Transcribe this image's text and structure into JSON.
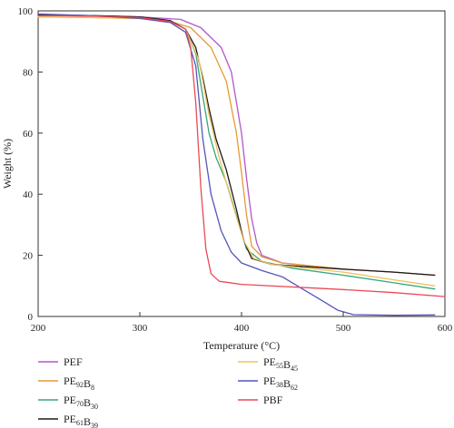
{
  "chart_data": {
    "type": "line",
    "xlabel": "Temperature (°C)",
    "ylabel": "Weight (%)",
    "xlim": [
      200,
      600
    ],
    "ylim": [
      0,
      100
    ],
    "x_ticks": [
      200,
      300,
      400,
      500,
      600
    ],
    "y_ticks": [
      0,
      20,
      40,
      60,
      80,
      100
    ],
    "grid": false,
    "legend_position": "below",
    "series": [
      {
        "name": "PEF",
        "parts": [
          [
            "PEF",
            ""
          ]
        ],
        "color": "#b455cc",
        "points": [
          [
            200,
            98.5
          ],
          [
            250,
            98.3
          ],
          [
            300,
            98.0
          ],
          [
            340,
            97.2
          ],
          [
            360,
            94.5
          ],
          [
            380,
            88
          ],
          [
            390,
            80
          ],
          [
            400,
            60
          ],
          [
            405,
            45
          ],
          [
            410,
            32
          ],
          [
            415,
            24
          ],
          [
            420,
            20
          ],
          [
            440,
            17.5
          ],
          [
            500,
            15.5
          ],
          [
            550,
            14.5
          ],
          [
            590,
            13.5
          ]
        ]
      },
      {
        "name": "PE92B8",
        "parts": [
          [
            "PE",
            "92"
          ],
          [
            "B",
            "8"
          ]
        ],
        "color": "#e69a33",
        "points": [
          [
            200,
            98.0
          ],
          [
            250,
            97.8
          ],
          [
            300,
            97.5
          ],
          [
            330,
            96.5
          ],
          [
            350,
            94.5
          ],
          [
            370,
            88
          ],
          [
            385,
            77
          ],
          [
            395,
            60
          ],
          [
            400,
            47
          ],
          [
            405,
            33
          ],
          [
            410,
            23
          ],
          [
            420,
            19.5
          ],
          [
            440,
            17.5
          ],
          [
            500,
            15.5
          ],
          [
            550,
            14.5
          ],
          [
            590,
            13.5
          ]
        ]
      },
      {
        "name": "PE70B30",
        "parts": [
          [
            "PE",
            "70"
          ],
          [
            "B",
            "30"
          ]
        ],
        "color": "#33a877",
        "points": [
          [
            200,
            98.5
          ],
          [
            250,
            98.5
          ],
          [
            300,
            98.0
          ],
          [
            330,
            96.8
          ],
          [
            345,
            94
          ],
          [
            355,
            86
          ],
          [
            362,
            72
          ],
          [
            368,
            60
          ],
          [
            375,
            52
          ],
          [
            385,
            44
          ],
          [
            395,
            33
          ],
          [
            405,
            22
          ],
          [
            420,
            18
          ],
          [
            450,
            15.8
          ],
          [
            500,
            13.5
          ],
          [
            550,
            11
          ],
          [
            590,
            9
          ]
        ]
      },
      {
        "name": "PE61B39",
        "parts": [
          [
            "PE",
            "61"
          ],
          [
            "B",
            "39"
          ]
        ],
        "color": "#1a1a1a",
        "points": [
          [
            200,
            98.8
          ],
          [
            250,
            98.5
          ],
          [
            300,
            98.0
          ],
          [
            330,
            96.8
          ],
          [
            345,
            94
          ],
          [
            355,
            88
          ],
          [
            362,
            78
          ],
          [
            368,
            68
          ],
          [
            375,
            58
          ],
          [
            385,
            48
          ],
          [
            395,
            35
          ],
          [
            402,
            25
          ],
          [
            410,
            19
          ],
          [
            430,
            17
          ],
          [
            500,
            15.5
          ],
          [
            550,
            14.5
          ],
          [
            590,
            13.5
          ]
        ]
      },
      {
        "name": "PE55B45",
        "parts": [
          [
            "PE",
            "55"
          ],
          [
            "B",
            "45"
          ]
        ],
        "color": "#f0c060",
        "points": [
          [
            200,
            98.0
          ],
          [
            250,
            97.8
          ],
          [
            300,
            97.5
          ],
          [
            330,
            96.5
          ],
          [
            345,
            94
          ],
          [
            358,
            84
          ],
          [
            368,
            66
          ],
          [
            378,
            52
          ],
          [
            390,
            38
          ],
          [
            402,
            25
          ],
          [
            412,
            19
          ],
          [
            430,
            17
          ],
          [
            500,
            14.5
          ],
          [
            550,
            12
          ],
          [
            590,
            10
          ]
        ]
      },
      {
        "name": "PE38B62",
        "parts": [
          [
            "PE",
            "38"
          ],
          [
            "B",
            "62"
          ]
        ],
        "color": "#5555b8",
        "points": [
          [
            200,
            99.0
          ],
          [
            250,
            98.5
          ],
          [
            300,
            97.5
          ],
          [
            330,
            96.2
          ],
          [
            345,
            93
          ],
          [
            355,
            82
          ],
          [
            362,
            58
          ],
          [
            370,
            40
          ],
          [
            380,
            28
          ],
          [
            390,
            21
          ],
          [
            400,
            17.5
          ],
          [
            420,
            15
          ],
          [
            440,
            13
          ],
          [
            460,
            9
          ],
          [
            480,
            5
          ],
          [
            495,
            2
          ],
          [
            510,
            0.6
          ],
          [
            550,
            0.4
          ],
          [
            590,
            0.5
          ]
        ]
      },
      {
        "name": "PBF",
        "parts": [
          [
            "PBF",
            ""
          ]
        ],
        "color": "#e84a55",
        "points": [
          [
            200,
            98.5
          ],
          [
            250,
            98.3
          ],
          [
            300,
            97.8
          ],
          [
            330,
            96.5
          ],
          [
            345,
            94
          ],
          [
            350,
            88
          ],
          [
            355,
            70
          ],
          [
            360,
            42
          ],
          [
            365,
            22
          ],
          [
            370,
            14
          ],
          [
            378,
            11.5
          ],
          [
            400,
            10.5
          ],
          [
            500,
            8.8
          ],
          [
            550,
            7.8
          ],
          [
            600,
            6.5
          ]
        ]
      }
    ]
  }
}
